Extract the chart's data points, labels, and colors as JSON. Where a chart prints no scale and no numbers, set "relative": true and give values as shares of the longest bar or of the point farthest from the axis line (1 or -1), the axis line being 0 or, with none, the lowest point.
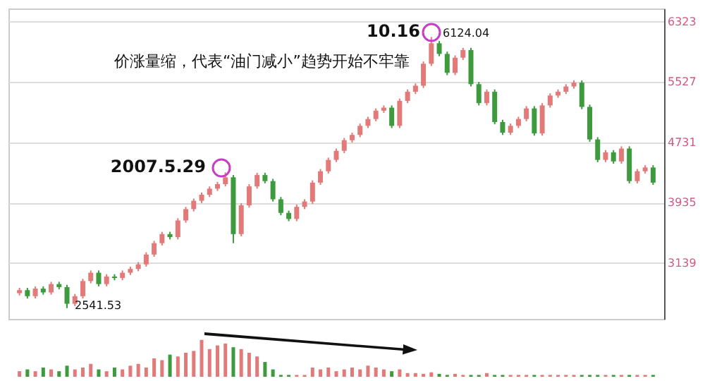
{
  "chart_data": [
    {
      "type": "candlestick",
      "categories": [
        null,
        null,
        null,
        null,
        null,
        null,
        null,
        null,
        null,
        null,
        null,
        null,
        null,
        null,
        null,
        null,
        null,
        null,
        null,
        null,
        null,
        null,
        null,
        null,
        null,
        null,
        null,
        null,
        null,
        null,
        null,
        null,
        null,
        null,
        null,
        null,
        null,
        null,
        null,
        null,
        null,
        null,
        null,
        null,
        null,
        null,
        null,
        null,
        null,
        null,
        null,
        null,
        null,
        null,
        null,
        null,
        null,
        null,
        null,
        null,
        null,
        null,
        null,
        null,
        null,
        null,
        null,
        null,
        null,
        null,
        null,
        null,
        null,
        null,
        null,
        null,
        null,
        null,
        null,
        null,
        null
      ],
      "ohlc": [
        [
          2740,
          2810,
          2710,
          2780
        ],
        [
          2780,
          2810,
          2670,
          2700
        ],
        [
          2700,
          2830,
          2670,
          2800
        ],
        [
          2800,
          2830,
          2720,
          2750
        ],
        [
          2750,
          2890,
          2720,
          2860
        ],
        [
          2860,
          2890,
          2790,
          2820
        ],
        [
          2820,
          2850,
          2541.53,
          2600
        ],
        [
          2600,
          2730,
          2570,
          2700
        ],
        [
          2700,
          2930,
          2670,
          2900
        ],
        [
          2900,
          3040,
          2870,
          3010
        ],
        [
          3010,
          3040,
          2830,
          2860
        ],
        [
          2860,
          2990,
          2830,
          2960
        ],
        [
          2960,
          2990,
          2910,
          2940
        ],
        [
          2940,
          3040,
          2910,
          3010
        ],
        [
          3010,
          3090,
          2980,
          3060
        ],
        [
          3060,
          3150,
          3030,
          3120
        ],
        [
          3120,
          3280,
          3090,
          3250
        ],
        [
          3250,
          3430,
          3220,
          3400
        ],
        [
          3400,
          3550,
          3370,
          3520
        ],
        [
          3520,
          3550,
          3450,
          3480
        ],
        [
          3480,
          3730,
          3450,
          3700
        ],
        [
          3700,
          3880,
          3670,
          3850
        ],
        [
          3850,
          3990,
          3820,
          3960
        ],
        [
          3960,
          4070,
          3930,
          4040
        ],
        [
          4040,
          4150,
          4010,
          4120
        ],
        [
          4120,
          4210,
          4090,
          4180
        ],
        [
          4180,
          4335,
          4150,
          4270
        ],
        [
          4270,
          4300,
          3400,
          3520
        ],
        [
          3520,
          3930,
          3490,
          3900
        ],
        [
          3900,
          4180,
          3870,
          4150
        ],
        [
          4150,
          4330,
          4120,
          4300
        ],
        [
          4300,
          4330,
          4190,
          4220
        ],
        [
          4220,
          4250,
          3950,
          3980
        ],
        [
          3980,
          4010,
          3770,
          3800
        ],
        [
          3800,
          3830,
          3690,
          3720
        ],
        [
          3720,
          3910,
          3690,
          3880
        ],
        [
          3880,
          3980,
          3850,
          3950
        ],
        [
          3950,
          4230,
          3920,
          4200
        ],
        [
          4200,
          4380,
          4170,
          4350
        ],
        [
          4350,
          4530,
          4320,
          4500
        ],
        [
          4500,
          4650,
          4470,
          4620
        ],
        [
          4620,
          4790,
          4590,
          4760
        ],
        [
          4760,
          4860,
          4730,
          4830
        ],
        [
          4830,
          4980,
          4800,
          4950
        ],
        [
          4950,
          5070,
          4920,
          5040
        ],
        [
          5040,
          5180,
          5010,
          5150
        ],
        [
          5150,
          5220,
          5120,
          5190
        ],
        [
          5190,
          5220,
          4920,
          4950
        ],
        [
          4950,
          5310,
          4920,
          5280
        ],
        [
          5280,
          5430,
          5250,
          5400
        ],
        [
          5400,
          5510,
          5370,
          5480
        ],
        [
          5480,
          5800,
          5450,
          5770
        ],
        [
          5770,
          6124.04,
          5740,
          6040
        ],
        [
          6040,
          6070,
          5870,
          5900
        ],
        [
          5900,
          5930,
          5620,
          5650
        ],
        [
          5650,
          5880,
          5620,
          5850
        ],
        [
          5850,
          5980,
          5820,
          5950
        ],
        [
          5950,
          5980,
          5470,
          5500
        ],
        [
          5500,
          5530,
          5220,
          5250
        ],
        [
          5250,
          5430,
          5220,
          5400
        ],
        [
          5400,
          5430,
          4970,
          5000
        ],
        [
          5000,
          5030,
          4830,
          4860
        ],
        [
          4860,
          4980,
          4830,
          4950
        ],
        [
          4950,
          5070,
          4920,
          5040
        ],
        [
          5040,
          5210,
          5010,
          5180
        ],
        [
          5180,
          5210,
          4820,
          4850
        ],
        [
          4850,
          5250,
          4820,
          5220
        ],
        [
          5220,
          5380,
          5190,
          5350
        ],
        [
          5350,
          5430,
          5320,
          5400
        ],
        [
          5400,
          5500,
          5370,
          5470
        ],
        [
          5470,
          5550,
          5440,
          5520
        ],
        [
          5520,
          5550,
          5170,
          5200
        ],
        [
          5200,
          5230,
          4740,
          4770
        ],
        [
          4770,
          4800,
          4470,
          4500
        ],
        [
          4500,
          4630,
          4470,
          4600
        ],
        [
          4600,
          4630,
          4450,
          4480
        ],
        [
          4480,
          4680,
          4450,
          4650
        ],
        [
          4650,
          4680,
          4190,
          4220
        ],
        [
          4220,
          4380,
          4190,
          4350
        ],
        [
          4350,
          4430,
          4320,
          4400
        ],
        [
          4400,
          4430,
          4170,
          4200
        ]
      ],
      "ylim": [
        2400,
        6500
      ],
      "yticks": [
        6323,
        5527,
        4731,
        3935,
        3139
      ],
      "grid": "y",
      "annotations": [
        "价涨量缩，代表“油门减小”趋势开始不牢靠",
        "2007.5.29",
        "10.16",
        "6124.04",
        "2541.53"
      ]
    },
    {
      "type": "bar",
      "relative": true,
      "categories": [
        null,
        null,
        null,
        null,
        null,
        null,
        null,
        null,
        null,
        null,
        null,
        null,
        null,
        null,
        null,
        null,
        null,
        null,
        null,
        null,
        null,
        null,
        null,
        null,
        null,
        null,
        null,
        null,
        null,
        null,
        null,
        null,
        null,
        null,
        null,
        null,
        null,
        null,
        null,
        null,
        null,
        null,
        null,
        null,
        null,
        null,
        null,
        null,
        null,
        null,
        null,
        null,
        null,
        null,
        null,
        null,
        null,
        null,
        null,
        null,
        null,
        null,
        null,
        null,
        null,
        null,
        null,
        null,
        null,
        null,
        null,
        null,
        null,
        null,
        null,
        null,
        null,
        null,
        null,
        null,
        null
      ],
      "values": [
        0.15,
        0.2,
        0.15,
        0.25,
        0.2,
        0.15,
        0.3,
        0.2,
        0.25,
        0.35,
        0.2,
        0.15,
        0.25,
        0.2,
        0.3,
        0.35,
        0.25,
        0.5,
        0.45,
        0.6,
        0.55,
        0.65,
        0.7,
        1.0,
        0.75,
        0.85,
        0.9,
        0.8,
        0.75,
        0.65,
        0.55,
        0.4,
        0.2,
        0.05,
        0.05,
        0.05,
        0.05,
        0.25,
        0.2,
        0.25,
        0.15,
        0.2,
        0.25,
        0.2,
        0.3,
        0.25,
        0.2,
        0.15,
        0.2,
        0.1,
        0.1,
        0.08,
        0.12,
        0.08,
        0.05,
        0.08,
        0.05,
        0.05,
        0.05,
        0.1,
        0.05,
        0.05,
        0.05,
        0.05,
        0.05,
        0.05,
        0.05,
        0.05,
        0.05,
        0.05,
        0.05,
        0.05,
        0.05,
        0.05,
        0.05,
        0.05,
        0.05,
        0.05,
        0.05,
        0.05,
        0.05
      ],
      "colors": [
        "#e27a7a",
        "#3d9a3d",
        "#e27a7a",
        "#3d9a3d",
        "#e27a7a",
        "#3d9a3d",
        "#3d9a3d",
        "#e27a7a",
        "#e27a7a",
        "#e27a7a",
        "#3d9a3d",
        "#e27a7a",
        "#3d9a3d",
        "#e27a7a",
        "#e27a7a",
        "#e27a7a",
        "#e27a7a",
        "#e27a7a",
        "#e27a7a",
        "#3d9a3d",
        "#e27a7a",
        "#e27a7a",
        "#e27a7a",
        "#e27a7a",
        "#e27a7a",
        "#e27a7a",
        "#e27a7a",
        "#3d9a3d",
        "#e27a7a",
        "#e27a7a",
        "#e27a7a",
        "#3d9a3d",
        "#3d9a3d",
        "#3d9a3d",
        "#3d9a3d",
        "#e27a7a",
        "#e27a7a",
        "#e27a7a",
        "#e27a7a",
        "#e27a7a",
        "#e27a7a",
        "#e27a7a",
        "#e27a7a",
        "#e27a7a",
        "#e27a7a",
        "#e27a7a",
        "#e27a7a",
        "#3d9a3d",
        "#e27a7a",
        "#e27a7a",
        "#e27a7a",
        "#e27a7a",
        "#e27a7a",
        "#3d9a3d",
        "#3d9a3d",
        "#e27a7a",
        "#e27a7a",
        "#3d9a3d",
        "#3d9a3d",
        "#e27a7a",
        "#3d9a3d",
        "#3d9a3d",
        "#e27a7a",
        "#e27a7a",
        "#e27a7a",
        "#3d9a3d",
        "#e27a7a",
        "#e27a7a",
        "#e27a7a",
        "#e27a7a",
        "#e27a7a",
        "#3d9a3d",
        "#3d9a3d",
        "#3d9a3d",
        "#e27a7a",
        "#3d9a3d",
        "#e27a7a",
        "#3d9a3d",
        "#e27a7a",
        "#e27a7a",
        "#3d9a3d"
      ]
    }
  ]
}
